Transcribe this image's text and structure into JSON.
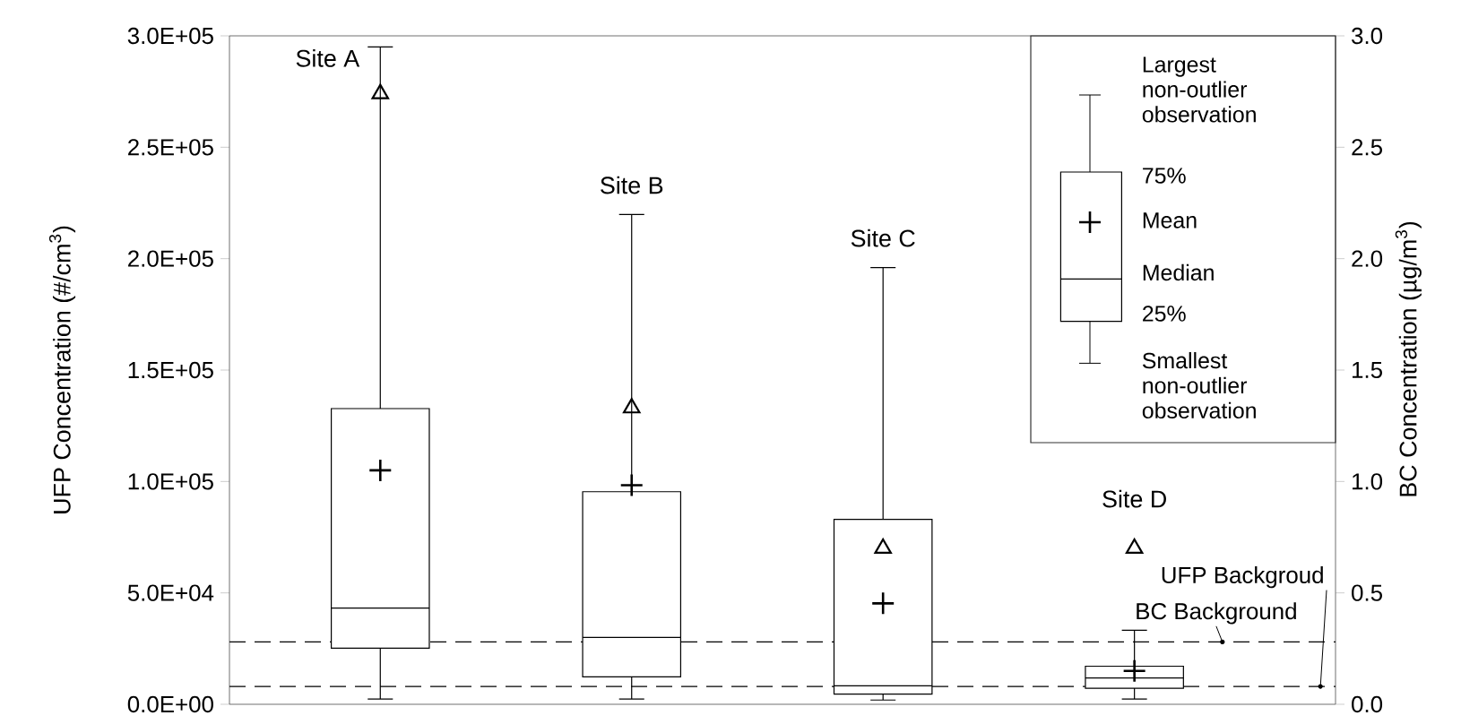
{
  "chart_data": {
    "type": "box",
    "categories": [
      null,
      null,
      null,
      null
    ],
    "color": "#000000",
    "boxes": [
      {
        "low": 2400,
        "q1": 25200,
        "median": 43200,
        "q3": 132700,
        "high": 295000,
        "mean": 105000
      },
      {
        "low": 2400,
        "q1": 12300,
        "median": 30000,
        "q3": 95400,
        "high": 219800,
        "mean": 98300
      },
      {
        "low": 1900,
        "q1": 4600,
        "median": 8300,
        "q3": 83000,
        "high": 196000,
        "mean": 45300
      },
      {
        "low": 2400,
        "q1": 7200,
        "median": 11800,
        "q3": 17100,
        "high": 33200,
        "mean": 15000
      }
    ],
    "series": [
      {
        "type": "scatter",
        "axis": "y2",
        "values": [
          2.74,
          1.33,
          0.7,
          0.7
        ],
        "marker": "triangle",
        "color": "#000000"
      }
    ],
    "ylabel": "UFP Concentration (#/cm$^{3}$)",
    "y2label": "BC Concentration (µg/m$^{3}$)",
    "ylim": [
      0,
      300000
    ],
    "yticks": [
      {
        "value": 0,
        "label": "0.0E+00"
      },
      {
        "value": 50000,
        "label": "5.0E+04"
      },
      {
        "value": 100000,
        "label": "1.0E+05"
      },
      {
        "value": 150000,
        "label": "1.5E+05"
      },
      {
        "value": 200000,
        "label": "2.0E+05"
      },
      {
        "value": 250000,
        "label": "2.5E+05"
      },
      {
        "value": 300000,
        "label": "3.0E+05"
      }
    ],
    "y2lim": [
      0,
      3
    ],
    "y2ticks": [
      {
        "value": 0,
        "label": "0.0"
      },
      0.5,
      {
        "value": 1,
        "label": "1.0"
      },
      1.5,
      {
        "value": 2,
        "label": "2.0"
      },
      2.5,
      {
        "value": 3,
        "label": "3.0"
      }
    ],
    "ref_lines": [
      {
        "axis": "y2",
        "value": 0.28,
        "label": "BC Background",
        "line_style": "dashed",
        "color": "#000000"
      },
      {
        "axis": "y",
        "value": 8000,
        "label": "UFP Backgroud",
        "line_style": "dashed",
        "color": "#000000"
      }
    ],
    "annotations": [
      "Site A",
      "Site B",
      "Site C",
      "Site D",
      "Largest non-outlier observation",
      "75%",
      "Mean",
      "Median",
      "25%",
      "Smallest non-outlier observation"
    ],
    "grid": false
  }
}
